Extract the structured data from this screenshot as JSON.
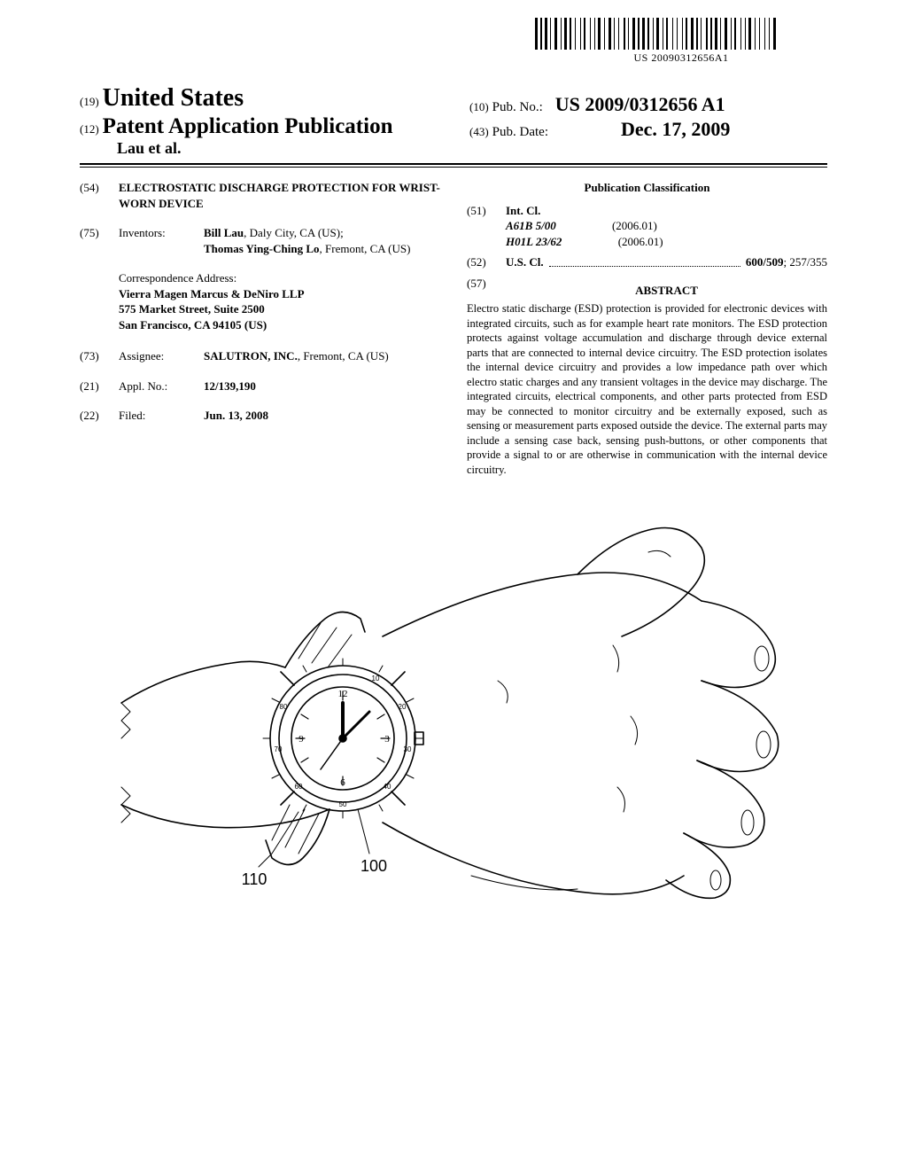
{
  "barcode": {
    "text_under": "US 20090312656A1",
    "bar_widths": [
      3,
      1,
      2,
      1,
      3,
      1,
      1,
      2,
      3,
      2,
      1,
      1,
      3,
      1,
      2,
      2,
      1,
      3,
      1,
      1,
      2,
      3,
      1,
      2,
      1,
      1,
      3,
      2,
      1,
      2,
      3,
      1,
      1,
      2,
      1,
      3,
      2,
      1,
      1,
      2,
      3,
      1,
      2,
      1,
      3,
      1,
      2,
      2,
      1,
      1,
      3,
      2,
      1,
      1,
      2,
      3,
      1,
      2,
      1,
      3,
      1,
      1,
      2,
      2,
      3,
      1,
      2,
      1,
      1,
      3,
      2,
      1,
      2,
      1,
      3,
      1,
      1,
      2,
      3,
      2,
      1,
      1,
      2,
      3,
      1,
      2,
      1,
      1,
      3,
      2,
      1,
      2,
      1,
      3,
      1,
      2,
      1,
      2,
      3,
      1
    ]
  },
  "header": {
    "code19": "(19)",
    "country": "United States",
    "code12": "(12)",
    "doc_type": "Patent Application Publication",
    "authors_line": "Lau et al.",
    "code10": "(10)",
    "pub_no_label": "Pub. No.:",
    "pub_no": "US 2009/0312656 A1",
    "code43": "(43)",
    "pub_date_label": "Pub. Date:",
    "pub_date": "Dec. 17, 2009"
  },
  "left": {
    "f54": {
      "code": "(54)",
      "title": "ELECTROSTATIC DISCHARGE PROTECTION FOR WRIST-WORN DEVICE"
    },
    "f75": {
      "code": "(75)",
      "label": "Inventors:",
      "inventors": [
        {
          "name": "Bill Lau",
          "loc": ", Daly City, CA (US);"
        },
        {
          "name": "Thomas Ying-Ching Lo",
          "loc": ", Fremont, CA (US)"
        }
      ]
    },
    "correspondence": {
      "heading": "Correspondence Address:",
      "lines": [
        "Vierra Magen Marcus & DeNiro LLP",
        "575 Market Street, Suite 2500",
        "San Francisco, CA 94105 (US)"
      ]
    },
    "f73": {
      "code": "(73)",
      "label": "Assignee:",
      "name": "SALUTRON, INC.",
      "loc": ", Fremont, CA (US)"
    },
    "f21": {
      "code": "(21)",
      "label": "Appl. No.:",
      "value": "12/139,190"
    },
    "f22": {
      "code": "(22)",
      "label": "Filed:",
      "value": "Jun. 13, 2008"
    }
  },
  "right": {
    "classification_heading": "Publication Classification",
    "f51": {
      "code": "(51)",
      "label": "Int. Cl.",
      "items": [
        {
          "code": "A61B 5/00",
          "year": "(2006.01)"
        },
        {
          "code": "H01L 23/62",
          "year": "(2006.01)"
        }
      ]
    },
    "f52": {
      "code": "(52)",
      "label": "U.S. Cl.",
      "value_bold": "600/509",
      "value_rest": "; 257/355"
    },
    "f57": {
      "code": "(57)",
      "heading": "ABSTRACT"
    },
    "abstract": "Electro static discharge (ESD) protection is provided for electronic devices with integrated circuits, such as for example heart rate monitors. The ESD protection protects against voltage accumulation and discharge through device external parts that are connected to internal device circuitry. The ESD protection isolates the internal device circuitry and provides a low impedance path over which electro static charges and any transient voltages in the device may discharge. The integrated circuits, electrical components, and other parts protected from ESD may be connected to monitor circuitry and be externally exposed, such as sensing or measurement parts exposed outside the device. The external parts may include a sensing case back, sensing push-buttons, or other components that provide a signal to or are otherwise in communication with the internal device circuitry."
  },
  "figure": {
    "ref_100": "100",
    "ref_110": "110",
    "watch_numbers": [
      "12",
      "3",
      "6",
      "9"
    ],
    "bezel_numbers": [
      "10",
      "20",
      "30",
      "40",
      "50",
      "60",
      "70",
      "80"
    ],
    "colors": {
      "stroke": "#000000",
      "bg": "#ffffff"
    },
    "line_width_main": 1.6,
    "line_width_thin": 1.0
  }
}
